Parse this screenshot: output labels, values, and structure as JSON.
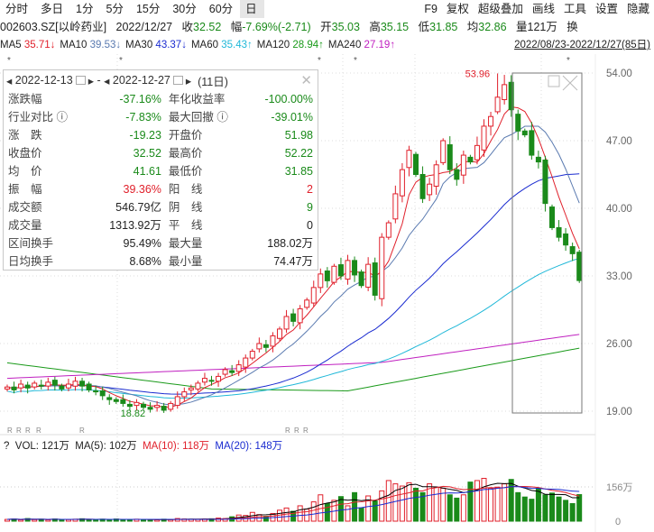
{
  "toolbar": {
    "periods": [
      "分时",
      "多日",
      "1分",
      "5分",
      "15分",
      "30分",
      "60分",
      "日"
    ],
    "active": "日",
    "right": [
      "F9",
      "复权",
      "超级叠加",
      "画线",
      "工具",
      "设置",
      "隐藏"
    ]
  },
  "quote": {
    "symbol": "002603.SZ[以岭药业]",
    "date": "2022/12/27",
    "close_label": "收",
    "close": "32.52",
    "chg_label": "幅",
    "chg": "-7.69%(-2.71)",
    "open_label": "开",
    "open": "35.03",
    "high_label": "高",
    "high": "35.15",
    "low_label": "低",
    "low": "31.85",
    "avg_label": "均",
    "avg": "32.86",
    "vol_label": "量",
    "vol": "121万",
    "extra": "换"
  },
  "ma": [
    {
      "label": "MA5",
      "value": "35.71↓",
      "color": "#e0202b"
    },
    {
      "label": "MA10",
      "value": "39.53↓",
      "color": "#5a7ab0"
    },
    {
      "label": "MA30",
      "value": "43.37↓",
      "color": "#1a2bd0"
    },
    {
      "label": "MA60",
      "value": "35.43↑",
      "color": "#20b8d8"
    },
    {
      "label": "MA120",
      "value": "28.94↑",
      "color": "#1a9a1a"
    },
    {
      "label": "MA240",
      "value": "27.19↑",
      "color": "#c020c0"
    }
  ],
  "range": "2022/08/23-2022/12/27(85日)",
  "panel": {
    "start": "2022-12-13",
    "sep": "-",
    "end": "2022-12-27",
    "days": "(11日)",
    "rows": [
      [
        "涨跌幅",
        "-37.16%",
        "年化收益率",
        "-100.00%"
      ],
      [
        "行业对比 ⓘ",
        "-7.83%",
        "最大回撤 ⓘ",
        "-39.01%"
      ],
      [
        "涨　跌",
        "-19.23",
        "开盘价",
        "51.98"
      ],
      [
        "收盘价",
        "32.52",
        "最高价",
        "52.22"
      ],
      [
        "均　价",
        "41.61",
        "最低价",
        "31.85"
      ],
      [
        "振　幅",
        "39.36%",
        "阳　线",
        "2"
      ],
      [
        "成交额",
        "546.79亿",
        "阴　线",
        "9"
      ],
      [
        "成交量",
        "1313.92万",
        "平　线",
        "0"
      ],
      [
        "区间换手",
        "95.49%",
        "最大量",
        "188.02万"
      ],
      [
        "日均换手",
        "8.68%",
        "最小量",
        "74.47万"
      ]
    ]
  },
  "volume": {
    "q": "?",
    "vol": "VOL: 121万",
    "ma5": "MA(5): 102万",
    "ma10": "MA(10): 118万",
    "ma20": "MA(20): 148万",
    "axis": [
      "156万",
      "0"
    ]
  },
  "chart_data": {
    "type": "candlestick",
    "price_axis": [
      "54.00",
      "47.00",
      "40.00",
      "33.00",
      "26.00",
      "19.00"
    ],
    "ylim": [
      19,
      54
    ],
    "high_label": "53.96",
    "low_label": "18.82",
    "closes": [
      21.5,
      21.2,
      21.8,
      21.4,
      21.9,
      21.6,
      22.0,
      21.7,
      21.3,
      21.8,
      22.1,
      21.6,
      21.2,
      21.0,
      20.6,
      20.2,
      20.0,
      19.8,
      19.5,
      19.9,
      19.4,
      19.2,
      19.6,
      19.1,
      19.8,
      20.5,
      21.0,
      21.4,
      21.9,
      22.4,
      22.1,
      22.6,
      23.3,
      23.0,
      23.8,
      24.5,
      25.2,
      26.0,
      25.6,
      26.8,
      27.5,
      28.8,
      28.3,
      29.6,
      30.5,
      31.8,
      33.2,
      32.5,
      34.0,
      33.0,
      34.6,
      33.1,
      32.0,
      34.2,
      31.0,
      37.0,
      38.5,
      41.5,
      44.0,
      46.0,
      43.5,
      41.0,
      42.5,
      44.5,
      47.0,
      44.0,
      43.0,
      45.5,
      44.8,
      46.5,
      48.5,
      49.5,
      51.5,
      52.8,
      50.2,
      48.0,
      47.6,
      45.5,
      44.8,
      40.5,
      38.0,
      37.0,
      36.2,
      35.3,
      32.52
    ],
    "volumes": [
      8,
      10,
      6,
      12,
      7,
      9,
      6,
      10,
      8,
      7,
      9,
      11,
      8,
      6,
      9,
      7,
      10,
      8,
      6,
      9,
      7,
      8,
      6,
      9,
      7,
      12,
      10,
      9,
      8,
      10,
      11,
      14,
      12,
      20,
      28,
      26,
      40,
      30,
      22,
      35,
      50,
      60,
      45,
      70,
      55,
      88,
      120,
      80,
      95,
      112,
      70,
      130,
      60,
      115,
      92,
      138,
      185,
      170,
      160,
      175,
      150,
      130,
      170,
      155,
      150,
      120,
      105,
      120,
      178,
      185,
      195,
      150,
      155,
      170,
      190,
      130,
      110,
      100,
      150,
      120,
      128,
      110,
      95,
      80,
      121
    ],
    "ma_extra": {
      "ma120_end": 28.94,
      "ma240_end": 27.19
    }
  }
}
